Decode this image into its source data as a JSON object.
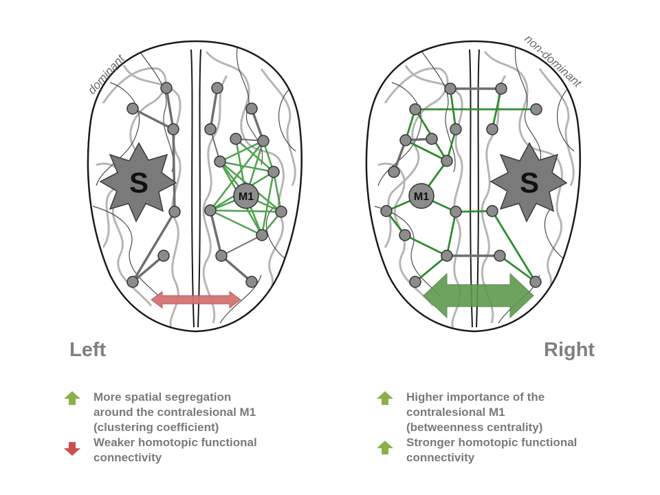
{
  "left": {
    "side_label": "Left",
    "hemisphere_label": "dominant",
    "stroke_label": "S",
    "m1_label": "M1",
    "legend": [
      {
        "arrow": "up",
        "arrow_color": "#8ab04a",
        "text": "More spatial segregation\naround the contralesional M1\n(clustering coefficient)"
      },
      {
        "arrow": "down",
        "arrow_color": "#c9504d",
        "text": "Weaker homotopic functional\nconnectivity"
      }
    ]
  },
  "right": {
    "side_label": "Right",
    "hemisphere_label": "non-dominant",
    "stroke_label": "S",
    "m1_label": "M1",
    "legend": [
      {
        "arrow": "up",
        "arrow_color": "#8ab04a",
        "text": "Higher importance of the\ncontralesional M1\n(betweenness centrality)"
      },
      {
        "arrow": "up",
        "arrow_color": "#8ab04a",
        "text": "Stronger homotopic functional\nconnectivity"
      }
    ]
  },
  "colors": {
    "node_fill": "#8c8c8c",
    "gray_edge": "#6e6e6e",
    "green_edge": "#2e8b2e",
    "green_edge_light": "#4fa64f",
    "red_arrow": "#d47272",
    "green_arrow": "#5a9a4a",
    "brain_outline": "#1a1a1a",
    "gyri": "#b5b5b5"
  }
}
